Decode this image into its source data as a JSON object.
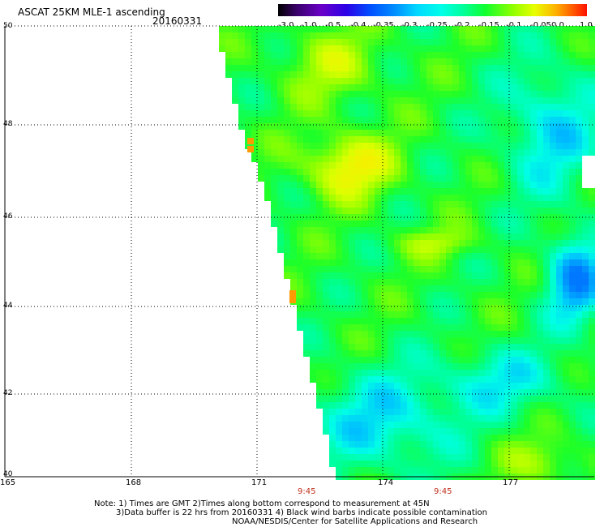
{
  "header": {
    "title": "ASCAT 25KM MLE-1 ascending",
    "date": "20160331"
  },
  "colorbar": {
    "labels": [
      "-3.0",
      "-1.0",
      "-0.5",
      "-0.4",
      "-0.35",
      "-0.3",
      "-0.25",
      "-0.2",
      "-0.15",
      "-0.1",
      "-0.05",
      "0.0",
      "1.0"
    ],
    "colors": [
      "#000000",
      "#5a009a",
      "#2c00e6",
      "#0050ff",
      "#0090ff",
      "#00d8ff",
      "#00ffe8",
      "#00ff9a",
      "#10ff30",
      "#90ff00",
      "#e8ff00",
      "#ff9000",
      "#ff2000"
    ]
  },
  "axes": {
    "lat_labels": [
      "50",
      "48",
      "46",
      "44",
      "42",
      "40"
    ],
    "lon_labels": [
      "165",
      "168",
      "171",
      "174",
      "177"
    ]
  },
  "times": [
    "9:45",
    "9:45"
  ],
  "notes": {
    "line1": "Note: 1) Times are GMT 2)Times along bottom correspond to measurement at 45N",
    "line2": "3)Data buffer is 22 hrs from 20160331 4) Black wind barbs indicate possible contamination",
    "line3": "NOAA/NESDIS/Center for Satellite Applications and Research"
  }
}
